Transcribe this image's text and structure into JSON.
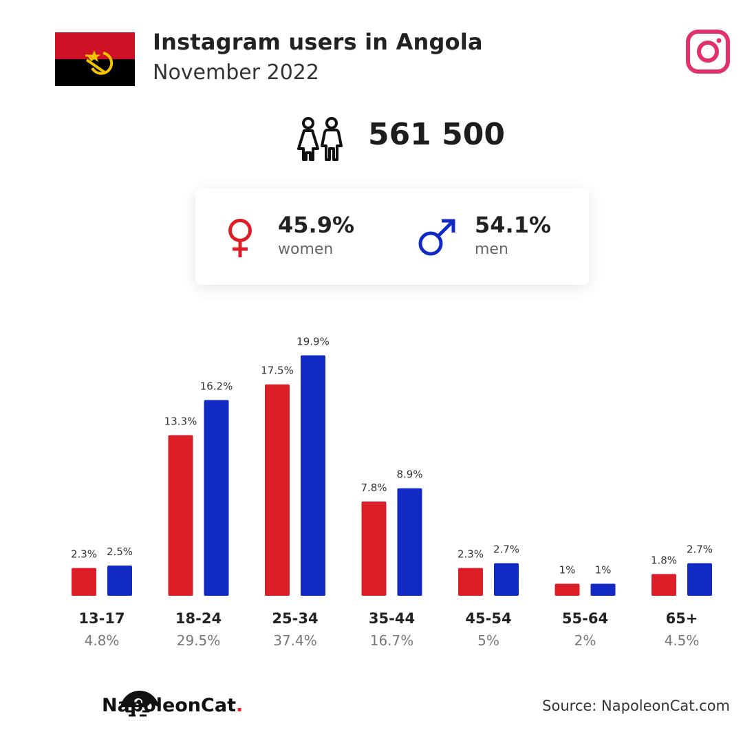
{
  "header": {
    "title": "Instagram users in Angola",
    "subtitle": "November 2022"
  },
  "summary": {
    "total_users": "561 500",
    "women": {
      "percent": "45.9%",
      "label": "women"
    },
    "men": {
      "percent": "54.1%",
      "label": "men"
    }
  },
  "colors": {
    "women": "#dc1f26",
    "men": "#102ac3",
    "instagram": "#e1306c"
  },
  "icons": {
    "flag": "angola-flag-icon",
    "platform": "instagram-icon",
    "users": "users-icon",
    "women": "female-symbol-icon",
    "men": "male-symbol-icon",
    "brand": "napoleoncat-logo-icon"
  },
  "chart_data": {
    "type": "bar",
    "categories": [
      "13-17",
      "18-24",
      "25-34",
      "35-44",
      "45-54",
      "55-64",
      "65+"
    ],
    "category_totals": [
      "4.8%",
      "29.5%",
      "37.4%",
      "16.7%",
      "5%",
      "2%",
      "4.5%"
    ],
    "series": [
      {
        "key": "women",
        "values": [
          2.3,
          13.3,
          17.5,
          7.8,
          2.3,
          1,
          1.8
        ],
        "labels": [
          "2.3%",
          "13.3%",
          "17.5%",
          "7.8%",
          "2.3%",
          "1%",
          "1.8%"
        ]
      },
      {
        "key": "men",
        "values": [
          2.5,
          16.2,
          19.9,
          8.9,
          2.7,
          1,
          2.7
        ],
        "labels": [
          "2.5%",
          "16.2%",
          "19.9%",
          "8.9%",
          "2.7%",
          "1%",
          "2.7%"
        ]
      }
    ],
    "grid": false,
    "legend": "none"
  },
  "footer": {
    "brand_name": "NapoleonCat",
    "brand_dot": ".",
    "source": "Source: NapoleonCat.com"
  }
}
